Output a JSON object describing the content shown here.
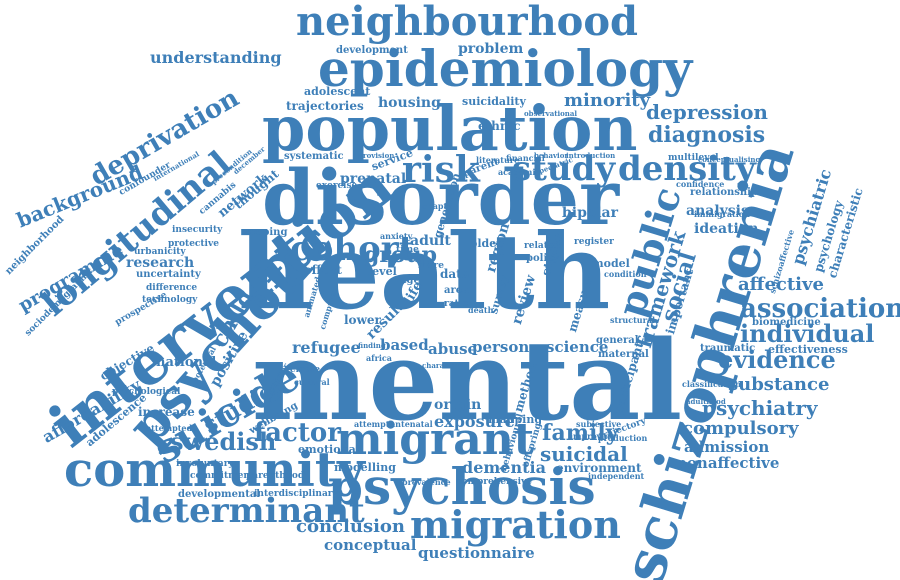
{
  "color": "#3e7fb8",
  "words": [
    {
      "id": "health",
      "text": "health"
    },
    {
      "id": "mental",
      "text": "mental"
    },
    {
      "id": "disorder",
      "text": "disorder"
    },
    {
      "id": "population",
      "text": "population"
    },
    {
      "id": "epidemiology",
      "text": "epidemiology"
    },
    {
      "id": "neighbourhood",
      "text": "neighbourhood"
    },
    {
      "id": "intervention",
      "text": "intervention"
    },
    {
      "id": "schizophrenia",
      "text": "schizophrenia"
    },
    {
      "id": "psychotic",
      "text": "psychotic"
    },
    {
      "id": "community",
      "text": "community"
    },
    {
      "id": "psychosis",
      "text": "psychosis"
    },
    {
      "id": "migrant",
      "text": "migrant"
    },
    {
      "id": "migration",
      "text": "migration"
    },
    {
      "id": "determinant",
      "text": "determinant"
    },
    {
      "id": "suicide",
      "text": "suicide"
    },
    {
      "id": "longitudinal",
      "text": "longitudinal"
    },
    {
      "id": "deprivation",
      "text": "deprivation"
    },
    {
      "id": "background",
      "text": "background"
    },
    {
      "id": "programme",
      "text": "programme"
    },
    {
      "id": "risk",
      "text": "risk"
    },
    {
      "id": "study",
      "text": "study"
    },
    {
      "id": "density",
      "text": "density"
    },
    {
      "id": "cohort",
      "text": "cohort"
    },
    {
      "id": "public",
      "text": "public"
    },
    {
      "id": "social",
      "text": "social"
    },
    {
      "id": "diagnosis",
      "text": "diagnosis"
    },
    {
      "id": "depression",
      "text": "depression"
    },
    {
      "id": "minority",
      "text": "minority"
    },
    {
      "id": "association",
      "text": "association"
    },
    {
      "id": "individual",
      "text": "individual"
    },
    {
      "id": "evidence",
      "text": "evidence"
    },
    {
      "id": "substance",
      "text": "substance"
    },
    {
      "id": "psychiatry",
      "text": "psychiatry"
    },
    {
      "id": "compulsory",
      "text": "compulsory"
    },
    {
      "id": "admission",
      "text": "admission"
    },
    {
      "id": "nonaffective",
      "text": "nonaffective"
    },
    {
      "id": "affective",
      "text": "affective"
    },
    {
      "id": "psychiatric",
      "text": "psychiatric"
    },
    {
      "id": "framework",
      "text": "framework"
    },
    {
      "id": "factor",
      "text": "factor"
    },
    {
      "id": "swedish",
      "text": "swedish"
    },
    {
      "id": "studies",
      "text": "studies"
    },
    {
      "id": "child",
      "text": "child"
    },
    {
      "id": "affordability",
      "text": "affordability"
    },
    {
      "id": "family",
      "text": "family"
    },
    {
      "id": "suicidal",
      "text": "suicidal"
    },
    {
      "id": "dementia",
      "text": "dementia"
    },
    {
      "id": "conclusion",
      "text": "conclusion"
    },
    {
      "id": "conceptual",
      "text": "conceptual"
    },
    {
      "id": "questionnaire",
      "text": "questionnaire"
    },
    {
      "id": "refugee",
      "text": "refugee"
    },
    {
      "id": "based",
      "text": "based"
    },
    {
      "id": "abuse",
      "text": "abuse"
    },
    {
      "id": "person",
      "text": "person"
    },
    {
      "id": "science",
      "text": "science"
    },
    {
      "id": "exposure",
      "text": "exposure"
    },
    {
      "id": "understanding",
      "text": "understanding"
    },
    {
      "id": "housing",
      "text": "housing"
    },
    {
      "id": "problem",
      "text": "problem"
    },
    {
      "id": "trajectories",
      "text": "trajectories"
    },
    {
      "id": "adolescent",
      "text": "adolescent"
    },
    {
      "id": "prenatal",
      "text": "prenatal"
    },
    {
      "id": "group",
      "text": "group"
    },
    {
      "id": "adult",
      "text": "adult"
    },
    {
      "id": "analysis",
      "text": "analysis"
    },
    {
      "id": "ideation",
      "text": "ideation"
    },
    {
      "id": "bipolar",
      "text": "bipolar"
    },
    {
      "id": "research",
      "text": "research"
    },
    {
      "id": "network",
      "text": "network"
    },
    {
      "id": "positive",
      "text": "positive"
    },
    {
      "id": "national",
      "text": "national"
    },
    {
      "id": "objective",
      "text": "objective"
    },
    {
      "id": "environment",
      "text": "environment"
    },
    {
      "id": "modelling",
      "text": "modelling"
    },
    {
      "id": "emotional",
      "text": "emotional"
    },
    {
      "id": "developmental",
      "text": "developmental"
    },
    {
      "id": "interdisciplinary",
      "text": "interdisciplinary"
    },
    {
      "id": "wellbeing",
      "text": "wellbeing"
    },
    {
      "id": "adolescence",
      "text": "adolescence"
    },
    {
      "id": "increase",
      "text": "increase"
    },
    {
      "id": "effectiveness",
      "text": "effectiveness"
    },
    {
      "id": "traumatic",
      "text": "traumatic"
    },
    {
      "id": "biomedicine",
      "text": "biomedicine"
    },
    {
      "id": "characteristic",
      "text": "characteristic"
    },
    {
      "id": "psychology",
      "text": "psychology"
    },
    {
      "id": "suicidality",
      "text": "suicidality"
    },
    {
      "id": "ethnic",
      "text": "ethnic"
    },
    {
      "id": "development",
      "text": "development"
    },
    {
      "id": "systematic",
      "text": "systematic"
    },
    {
      "id": "origin",
      "text": "origin"
    },
    {
      "id": "mapping",
      "text": "mapping"
    },
    {
      "id": "review",
      "text": "review"
    },
    {
      "id": "measure",
      "text": "measure"
    },
    {
      "id": "method",
      "text": "method"
    },
    {
      "id": "participant",
      "text": "participant"
    },
    {
      "id": "important",
      "text": "important"
    },
    {
      "id": "status",
      "text": "status"
    },
    {
      "id": "region",
      "text": "region"
    },
    {
      "id": "survey",
      "text": "survey"
    },
    {
      "id": "effect",
      "text": "effect"
    },
    {
      "id": "result",
      "text": "result"
    },
    {
      "id": "lower",
      "text": "lower"
    },
    {
      "id": "level",
      "text": "level"
    },
    {
      "id": "data",
      "text": "data"
    },
    {
      "id": "older",
      "text": "older"
    },
    {
      "id": "model",
      "text": "model"
    },
    {
      "id": "policy",
      "text": "policy"
    },
    {
      "id": "relationship",
      "text": "relationship"
    },
    {
      "id": "multilevel",
      "text": "multilevel"
    },
    {
      "id": "comprehensive",
      "text": "comprehensive"
    },
    {
      "id": "general",
      "text": "general"
    },
    {
      "id": "maternal",
      "text": "maternal"
    },
    {
      "id": "service",
      "text": "service"
    },
    {
      "id": "parent",
      "text": "parent"
    },
    {
      "id": "scoping",
      "text": "scoping"
    },
    {
      "id": "insecurity",
      "text": "insecurity"
    },
    {
      "id": "urbanicity",
      "text": "urbanicity"
    },
    {
      "id": "uncertainty",
      "text": "uncertainty"
    },
    {
      "id": "difference",
      "text": "difference"
    },
    {
      "id": "technology",
      "text": "technology"
    },
    {
      "id": "prospective",
      "text": "prospective"
    },
    {
      "id": "psychological",
      "text": "psychological"
    },
    {
      "id": "neighborhood",
      "text": "neighborhood"
    },
    {
      "id": "sociodemographic",
      "text": "sociodemographic"
    },
    {
      "id": "confounder",
      "text": "confounder"
    },
    {
      "id": "protective",
      "text": "protective"
    },
    {
      "id": "cannabis",
      "text": "cannabis"
    },
    {
      "id": "thought",
      "text": "thought"
    },
    {
      "id": "exercise",
      "text": "exercise"
    },
    {
      "id": "involuntary",
      "text": "involuntary"
    },
    {
      "id": "commitment",
      "text": "commitment"
    },
    {
      "id": "parenthood",
      "text": "parenthood"
    },
    {
      "id": "attempted",
      "text": "attempted"
    },
    {
      "id": "female",
      "text": "female"
    },
    {
      "id": "cultural",
      "text": "cultural"
    },
    {
      "id": "predictor",
      "text": "predictor"
    },
    {
      "id": "potential",
      "text": "potential"
    },
    {
      "id": "attempt",
      "text": "attempt"
    },
    {
      "id": "antenatal",
      "text": "antenatal"
    },
    {
      "id": "behavioural",
      "text": "behavioural"
    },
    {
      "id": "offspring",
      "text": "offspring"
    },
    {
      "id": "independent",
      "text": "independent"
    },
    {
      "id": "prevalence",
      "text": "prevalence"
    },
    {
      "id": "trajectory",
      "text": "trajectory"
    },
    {
      "id": "improving",
      "text": "improving"
    },
    {
      "id": "production",
      "text": "production"
    },
    {
      "id": "subjective",
      "text": "subjective"
    },
    {
      "id": "structural",
      "text": "structural"
    },
    {
      "id": "register",
      "text": "register"
    },
    {
      "id": "related",
      "text": "related"
    },
    {
      "id": "immigration",
      "text": "immigration"
    },
    {
      "id": "confidence",
      "text": "confidence"
    },
    {
      "id": "schizoaffective",
      "text": "schizoaffective"
    },
    {
      "id": "classification",
      "text": "classification"
    },
    {
      "id": "adulthood",
      "text": "adulthood"
    },
    {
      "id": "animated",
      "text": "animated"
    },
    {
      "id": "computer",
      "text": "computer"
    },
    {
      "id": "africa",
      "text": "africa"
    },
    {
      "id": "finding",
      "text": "finding"
    },
    {
      "id": "life",
      "text": "life"
    },
    {
      "id": "chapter",
      "text": "chapter"
    },
    {
      "id": "international",
      "text": "international"
    },
    {
      "id": "precondition",
      "text": "precondition"
    },
    {
      "id": "december",
      "text": "december"
    },
    {
      "id": "literature",
      "text": "literature"
    },
    {
      "id": "financial",
      "text": "financial"
    },
    {
      "id": "behavior",
      "text": "behavior"
    },
    {
      "id": "academic",
      "text": "academic"
    },
    {
      "id": "pediatric",
      "text": "pediatric"
    },
    {
      "id": "observational",
      "text": "observational"
    },
    {
      "id": "conceptualising",
      "text": "conceptualising"
    },
    {
      "id": "provision",
      "text": "provision"
    },
    {
      "id": "introduction",
      "text": "introduction"
    },
    {
      "id": "character",
      "text": "character"
    },
    {
      "id": "area",
      "text": "area"
    },
    {
      "id": "ratio",
      "text": "ratio"
    },
    {
      "id": "death",
      "text": "death"
    },
    {
      "id": "time",
      "text": "time"
    },
    {
      "id": "more",
      "text": "more"
    },
    {
      "id": "age",
      "text": "age"
    },
    {
      "id": "generation",
      "text": "generation"
    },
    {
      "id": "anxiety",
      "text": "anxiety"
    },
    {
      "id": "condition",
      "text": "condition"
    }
  ]
}
